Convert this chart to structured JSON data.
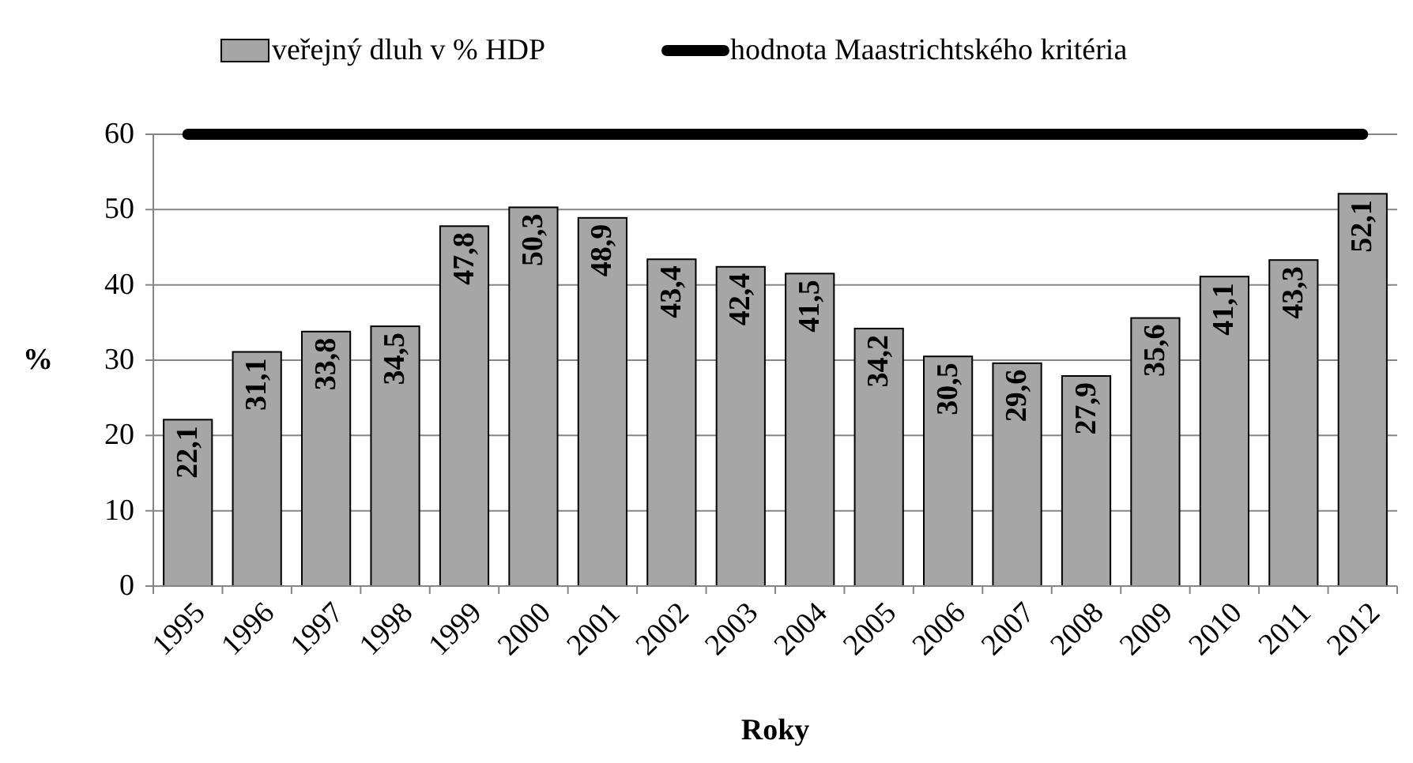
{
  "chart_data": {
    "type": "bar",
    "xlabel": "Roky",
    "ylabel": "%",
    "categories": [
      "1995",
      "1996",
      "1997",
      "1998",
      "1999",
      "2000",
      "2001",
      "2002",
      "2003",
      "2004",
      "2005",
      "2006",
      "2007",
      "2008",
      "2009",
      "2010",
      "2011",
      "2012"
    ],
    "series": [
      {
        "name": "veřejný dluh v % HDP",
        "color": "#a6a6a6",
        "values": [
          22.1,
          31.1,
          33.8,
          34.5,
          47.8,
          50.3,
          48.9,
          43.4,
          42.4,
          41.5,
          34.2,
          30.5,
          29.6,
          27.9,
          35.6,
          41.1,
          43.3,
          52.1
        ],
        "value_labels": [
          "22,1",
          "31,1",
          "33,8",
          "34,5",
          "47,8",
          "50,3",
          "48,9",
          "43,4",
          "42,4",
          "41,5",
          "34,2",
          "30,5",
          "29,6",
          "27,9",
          "35,6",
          "41,1",
          "43,3",
          "52,1"
        ]
      },
      {
        "name": "hodnota Maastrichtského kritéria",
        "type": "line",
        "color": "#000000",
        "values": [
          60,
          60,
          60,
          60,
          60,
          60,
          60,
          60,
          60,
          60,
          60,
          60,
          60,
          60,
          60,
          60,
          60,
          60
        ]
      }
    ],
    "ylim": [
      0,
      60
    ],
    "yticks": [
      0,
      10,
      20,
      30,
      40,
      50,
      60
    ],
    "grid": "y",
    "legend": "top"
  }
}
